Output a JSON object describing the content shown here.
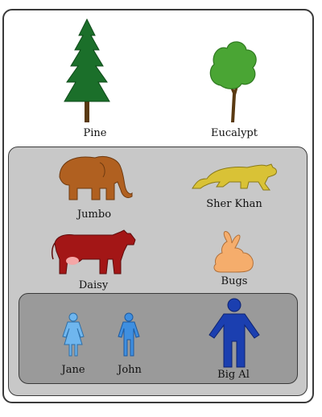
{
  "trees": [
    {
      "name": "Pine"
    },
    {
      "name": "Eucalypt"
    }
  ],
  "animals": [
    {
      "name": "Jumbo"
    },
    {
      "name": "Sher Khan"
    },
    {
      "name": "Daisy"
    },
    {
      "name": "Bugs"
    }
  ],
  "people": [
    {
      "name": "Jane"
    },
    {
      "name": "John"
    },
    {
      "name": "Big Al"
    }
  ],
  "colors": {
    "pine": "#1b6f2a",
    "eucalypt": "#4aa534",
    "elephant": "#b06020",
    "tiger": "#d9c236",
    "cow": "#a31616",
    "rabbit": "#f5ad6c",
    "jane": "#6fb6ee",
    "john": "#3f8fe0",
    "bigal": "#1b3fb0",
    "animal_box": "#c8c8c8",
    "people_box": "#9a9a9a"
  }
}
